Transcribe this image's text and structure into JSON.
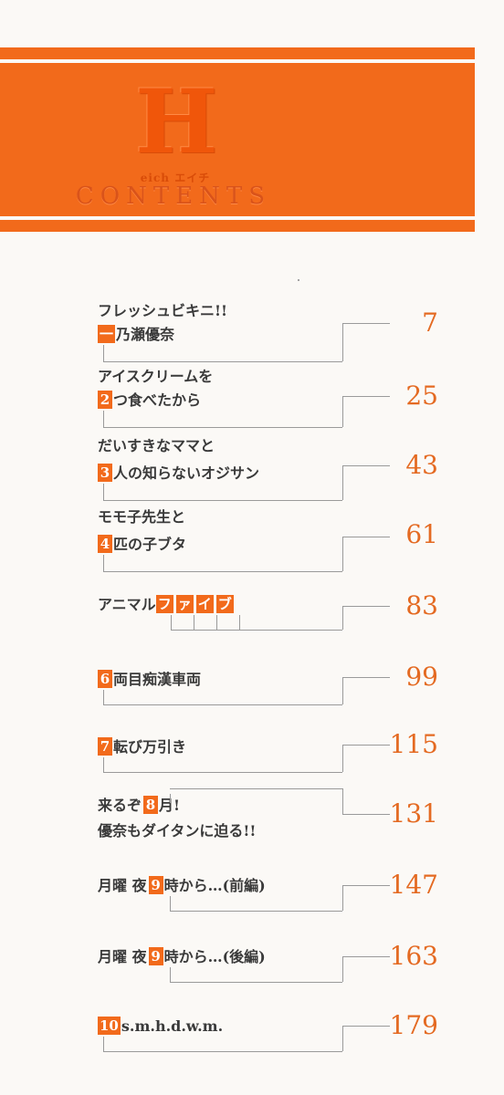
{
  "header": {
    "logo_letter": "H",
    "logo_sub": "eich エイチ",
    "contents_title": "CONTENTS"
  },
  "entries": [
    {
      "line1": "フレッシュビキニ!!",
      "num": "一",
      "line2": "乃瀬優奈",
      "page": "7"
    },
    {
      "line1": "アイスクリームを",
      "num": "2",
      "line2": "つ食べたから",
      "page": "25"
    },
    {
      "line1": "だいすきなママと",
      "num": "3",
      "line2": "人の知らないオジサン",
      "page": "43"
    },
    {
      "line1": "モモ子先生と",
      "num": "4",
      "line2": "匹の子ブタ",
      "page": "61"
    },
    {
      "prefix": "アニマル",
      "boxes": [
        "フ",
        "ァ",
        "イ",
        "ブ"
      ],
      "page": "83"
    },
    {
      "num": "6",
      "line1": "両目痴漢車両",
      "page": "99"
    },
    {
      "num": "7",
      "line1": "転び万引き",
      "page": "115"
    },
    {
      "line1a": "来るぞ",
      "num": "8",
      "line1b": "月!",
      "line2": "優奈もダイタンに迫る!!",
      "page": "131"
    },
    {
      "line1a": "月曜 夜",
      "num": "9",
      "line1b": "時から…(前編)",
      "page": "147"
    },
    {
      "line1a": "月曜 夜",
      "num": "9",
      "line1b": "時から…(後編)",
      "page": "163"
    },
    {
      "num": "10",
      "line1": "s.m.h.d.w.m.",
      "page": "179"
    }
  ]
}
